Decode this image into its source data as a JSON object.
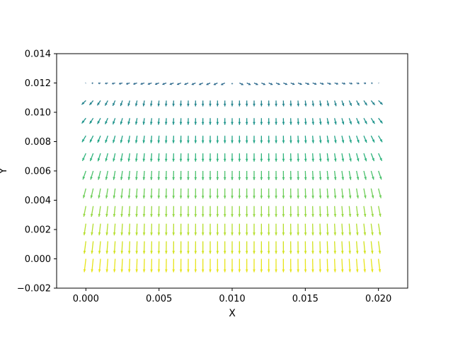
{
  "chart_data": {
    "type": "quiver",
    "title": "",
    "xlabel": "X",
    "ylabel": "Y",
    "xlim": [
      -0.002,
      0.022
    ],
    "ylim": [
      -0.002,
      0.014
    ],
    "xticks": [
      0.0,
      0.005,
      0.01,
      0.015,
      0.02
    ],
    "xtick_labels": [
      "0.000",
      "0.005",
      "0.010",
      "0.015",
      "0.020"
    ],
    "yticks": [
      -0.002,
      0.0,
      0.002,
      0.004,
      0.006,
      0.008,
      0.01,
      0.012,
      0.014
    ],
    "ytick_labels": [
      "−0.002",
      "0.000",
      "0.002",
      "0.004",
      "0.006",
      "0.008",
      "0.010",
      "0.012",
      "0.014"
    ],
    "grid": false,
    "colormap": "viridis",
    "field": {
      "x_start": 0.0,
      "x_end": 0.02,
      "x_count": 41,
      "y_values": [
        0.0,
        0.0012,
        0.0024,
        0.0036,
        0.0048,
        0.006,
        0.0072,
        0.0084,
        0.0096,
        0.0108,
        0.012
      ],
      "description": "Arrows point downward; magnitude largest at the bottom row and smallest near the top row. Outer columns tilt outward, increasingly toward the top."
    },
    "colors": {
      "row_colors": [
        "#e7e419",
        "#d2e21b",
        "#b5de2b",
        "#95d840",
        "#6ece58",
        "#4ac16d",
        "#2fb47c",
        "#20a486",
        "#1f948c",
        "#25848e",
        "#2f6b8e"
      ],
      "axes": "#000000"
    }
  }
}
